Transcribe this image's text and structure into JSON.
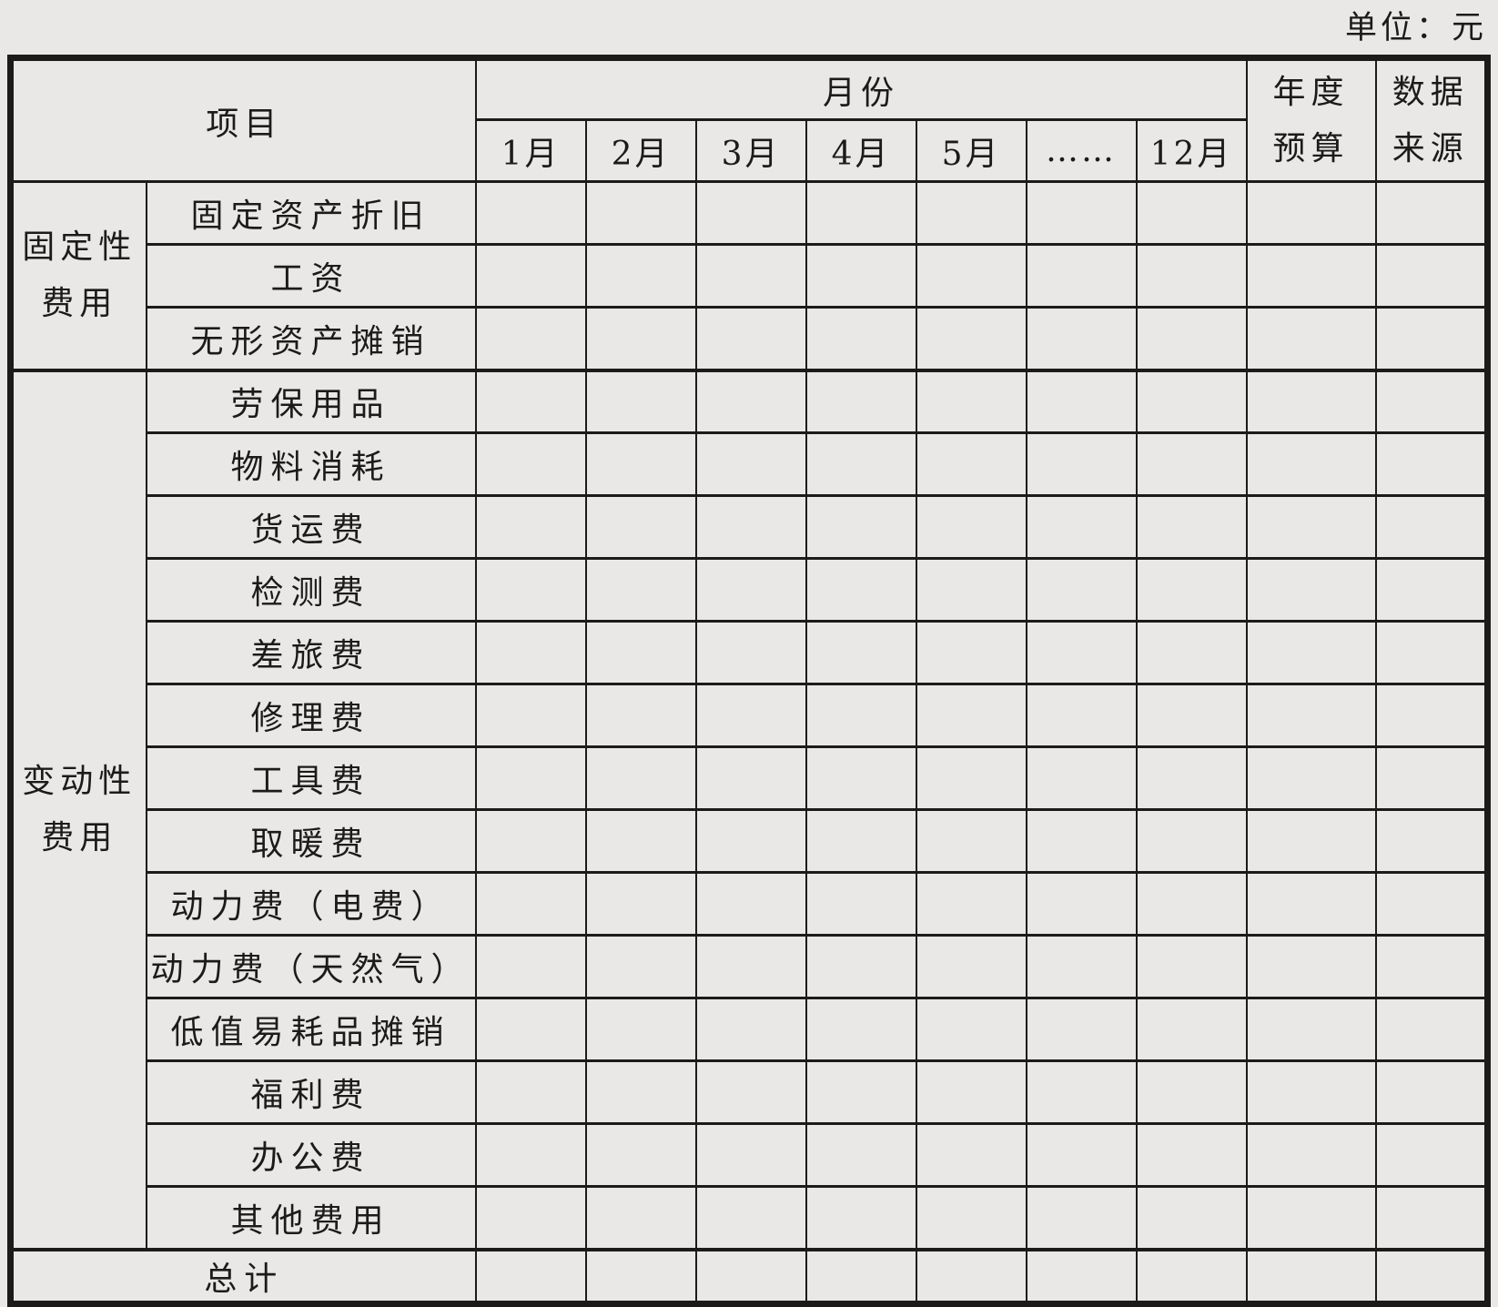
{
  "page": {
    "unit_note": "单位：元"
  },
  "colors": {
    "background": "#e9e8e6",
    "border": "#1d1b19",
    "text": "#1d1b19"
  },
  "table": {
    "header": {
      "item_label": "项目",
      "month_group_label": "月份",
      "months": [
        "1月",
        "2月",
        "3月",
        "4月",
        "5月",
        "……",
        "12月"
      ],
      "annual_budget_line1": "年度",
      "annual_budget_line2": "预算",
      "data_source_line1": "数据",
      "data_source_line2": "来源"
    },
    "fixed_group": {
      "label_line1": "固定性",
      "label_line2": "费用",
      "items": [
        "固定资产折旧",
        "工资",
        "无形资产摊销"
      ]
    },
    "variable_group": {
      "label_line1": "变动性",
      "label_line2": "费用",
      "items": [
        "劳保用品",
        "物料消耗",
        "货运费",
        "检测费",
        "差旅费",
        "修理费",
        "工具费",
        "取暖费",
        "动力费（电费）",
        "动力费（天然气）",
        "低值易耗品摊销",
        "福利费",
        "办公费",
        "其他费用"
      ]
    },
    "total_label": "总计",
    "value_cells_note": ""
  }
}
